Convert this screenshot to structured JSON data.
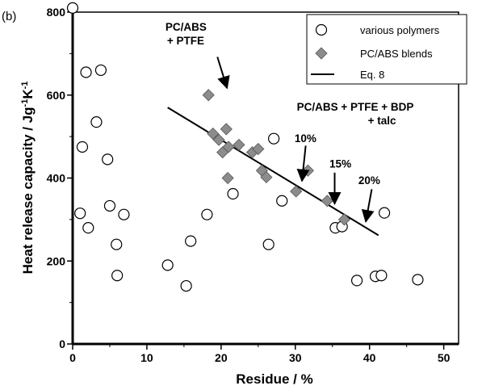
{
  "chart_data": {
    "type": "scatter",
    "panel_label": "(b)",
    "xlabel": "Residue  /  %",
    "ylabel_main": "Heat release capacity  /  Jg",
    "ylabel_sup1": "-1",
    "ylabel_mid": "K",
    "ylabel_sup2": "-1",
    "xlim": [
      0,
      52
    ],
    "ylim": [
      0,
      800
    ],
    "xticks": [
      "0",
      "10",
      "20",
      "30",
      "40",
      "50"
    ],
    "xtick_values": [
      0,
      10,
      20,
      30,
      40,
      50
    ],
    "yticks": [
      "0",
      "200",
      "400",
      "600",
      "800"
    ],
    "ytick_values": [
      0,
      200,
      400,
      600,
      800
    ],
    "colors": {
      "blend_fill": "#8c8c8c",
      "axis": "#000000"
    },
    "legend": {
      "position": "top-right",
      "entries": [
        {
          "label": "various polymers",
          "marker": "open-circle"
        },
        {
          "label": "PC/ABS blends",
          "marker": "gray-diamond"
        },
        {
          "label": "Eq. 8",
          "marker": "line"
        }
      ]
    },
    "series": [
      {
        "name": "various polymers",
        "marker": "open-circle",
        "points": [
          [
            0,
            810
          ],
          [
            1.8,
            655
          ],
          [
            3.8,
            660
          ],
          [
            1.3,
            475
          ],
          [
            3.2,
            535
          ],
          [
            4.7,
            445
          ],
          [
            1.0,
            315
          ],
          [
            2.1,
            280
          ],
          [
            5.0,
            333
          ],
          [
            6.9,
            312
          ],
          [
            5.9,
            240
          ],
          [
            6.0,
            165
          ],
          [
            12.8,
            190
          ],
          [
            15.3,
            140
          ],
          [
            15.9,
            248
          ],
          [
            18.1,
            312
          ],
          [
            21.6,
            362
          ],
          [
            26.4,
            240
          ],
          [
            27.1,
            495
          ],
          [
            28.2,
            345
          ],
          [
            35.4,
            280
          ],
          [
            36.3,
            283
          ],
          [
            38.3,
            153
          ],
          [
            40.8,
            163
          ],
          [
            41.6,
            165
          ],
          [
            42.0,
            316
          ],
          [
            46.5,
            155
          ]
        ]
      },
      {
        "name": "PC/ABS blends",
        "marker": "gray-diamond",
        "points": [
          [
            18.3,
            600
          ],
          [
            18.9,
            507
          ],
          [
            19.7,
            492
          ],
          [
            20.2,
            462
          ],
          [
            20.7,
            518
          ],
          [
            21.0,
            475
          ],
          [
            20.9,
            400
          ],
          [
            22.4,
            480
          ],
          [
            24.2,
            462
          ],
          [
            25.0,
            470
          ],
          [
            25.5,
            418
          ],
          [
            26.1,
            402
          ],
          [
            31.7,
            418
          ],
          [
            30.1,
            368
          ],
          [
            34.3,
            345
          ],
          [
            36.6,
            300
          ]
        ]
      },
      {
        "name": "Eq. 8",
        "marker": "line",
        "points": [
          [
            12.8,
            570
          ],
          [
            41.2,
            262
          ]
        ]
      }
    ],
    "annotations": [
      {
        "lines": [
          "PC/ABS",
          "+ PTFE"
        ],
        "text_at": [
          12.5,
          755
        ],
        "arrow_from": [
          19.5,
          692
        ],
        "arrow_to": [
          20.8,
          617
        ]
      },
      {
        "lines": [
          "PC/ABS + PTFE + BDP",
          "+ talc"
        ],
        "text_at": [
          30.2,
          563
        ]
      },
      {
        "lines": [
          "10%"
        ],
        "text_at": [
          29.9,
          487
        ],
        "arrow_from": [
          31.4,
          478
        ],
        "arrow_to": [
          30.9,
          393
        ]
      },
      {
        "lines": [
          "15%"
        ],
        "text_at": [
          34.6,
          425
        ],
        "arrow_from": [
          35.3,
          413
        ],
        "arrow_to": [
          35.3,
          338
        ]
      },
      {
        "lines": [
          "20%"
        ],
        "text_at": [
          38.5,
          385
        ],
        "arrow_from": [
          40.3,
          373
        ],
        "arrow_to": [
          39.5,
          295
        ]
      }
    ]
  }
}
